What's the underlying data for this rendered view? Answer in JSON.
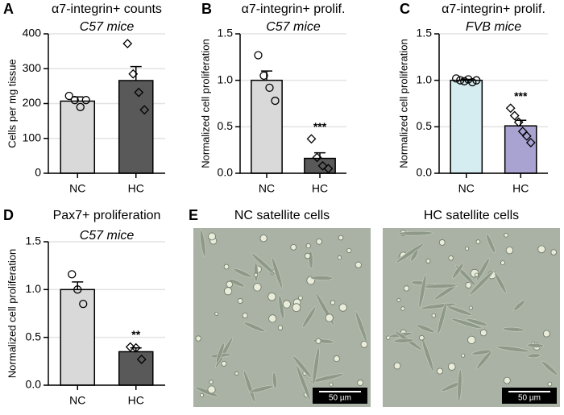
{
  "chart_data": [
    {
      "type": "bar",
      "label": "A",
      "title": "α7-integrin+ counts",
      "subtitle": "C57 mice",
      "ylabel": "Cells per mg tissue",
      "categories": [
        "NC",
        "HC"
      ],
      "values": [
        207,
        266
      ],
      "errors": [
        12,
        40
      ],
      "points": [
        [
          222,
          210,
          190,
          210
        ],
        [
          372,
          285,
          232,
          182
        ]
      ],
      "markers": [
        "circle",
        "diamond"
      ],
      "colors": [
        "#d9d9d9",
        "#595959"
      ],
      "ylim": [
        0,
        400
      ],
      "yticks": [
        0,
        100,
        200,
        300,
        400
      ]
    },
    {
      "type": "bar",
      "label": "B",
      "title": "α7-integrin+ prolif.",
      "subtitle": "C57 mice",
      "ylabel": "Normalized cell proliferation",
      "categories": [
        "NC",
        "HC"
      ],
      "values": [
        1.0,
        0.16
      ],
      "errors": [
        0.1,
        0.06
      ],
      "points": [
        [
          1.27,
          1.05,
          0.92,
          0.78
        ],
        [
          0.37,
          0.17,
          0.08,
          0.05
        ]
      ],
      "markers": [
        "circle",
        "diamond"
      ],
      "colors": [
        "#d9d9d9",
        "#595959"
      ],
      "ylim": [
        0,
        1.5
      ],
      "yticks": [
        {
          "value": 0,
          "label": "0.0"
        },
        0.5,
        {
          "value": 1,
          "label": "1.0"
        },
        1.5
      ],
      "annotation": "***"
    },
    {
      "type": "bar",
      "label": "C",
      "title": "α7-integrin+ prolif.",
      "subtitle": "FVB mice",
      "ylabel": "Normalized cell proliferation",
      "categories": [
        "NC",
        "HC"
      ],
      "values": [
        1.0,
        0.51
      ],
      "errors": [
        0.01,
        0.06
      ],
      "points": [
        [
          1.02,
          1.0,
          0.99,
          1.01,
          0.98,
          1.0
        ],
        [
          0.7,
          0.62,
          0.55,
          0.45,
          0.4,
          0.33
        ]
      ],
      "markers": [
        "circle",
        "diamond"
      ],
      "colors": [
        "#d5ecf0",
        "#a9a3d2"
      ],
      "ylim": [
        0,
        1.5
      ],
      "yticks": [
        {
          "value": 0,
          "label": "0.0"
        },
        0.5,
        {
          "value": 1,
          "label": "1.0"
        },
        1.5
      ],
      "annotation": "***"
    },
    {
      "type": "bar",
      "label": "D",
      "title": "Pax7+ proliferation",
      "subtitle": "C57 mice",
      "ylabel": "Normalized cell proliferation",
      "categories": [
        "NC",
        "HC"
      ],
      "values": [
        1.0,
        0.35
      ],
      "errors": [
        0.08,
        0.04
      ],
      "points": [
        [
          1.16,
          1.0,
          0.85
        ],
        [
          0.4,
          0.39,
          0.27
        ]
      ],
      "markers": [
        "circle",
        "diamond"
      ],
      "colors": [
        "#d9d9d9",
        "#595959"
      ],
      "ylim": [
        0,
        1.5
      ],
      "yticks": [
        {
          "value": 0,
          "label": "0.0"
        },
        0.5,
        {
          "value": 1,
          "label": "1.0"
        },
        1.5
      ],
      "annotation": "**"
    }
  ],
  "images": {
    "label": "E",
    "panels": [
      {
        "title": "NC satellite cells",
        "scale_bar": "50 µm"
      },
      {
        "title": "HC satellite cells",
        "scale_bar": "50 µm"
      }
    ]
  }
}
